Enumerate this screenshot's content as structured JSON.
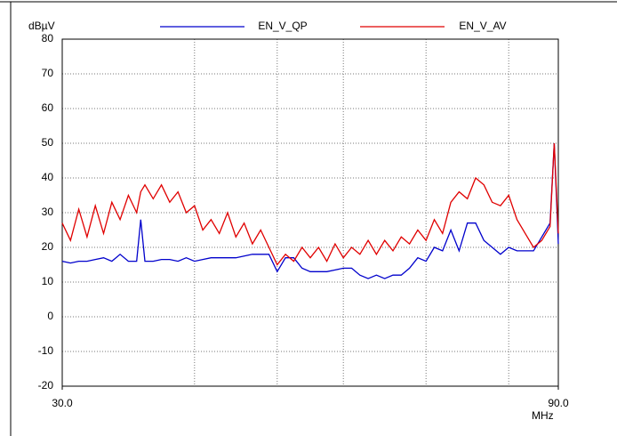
{
  "chart_data": {
    "type": "line",
    "y_label": "dBµV",
    "x_label": "MHz",
    "x": [
      30,
      31,
      32,
      33,
      34,
      35,
      36,
      37,
      38,
      39,
      39.5,
      40,
      41,
      42,
      43,
      44,
      45,
      46,
      47,
      48,
      49,
      50,
      51,
      52,
      53,
      54,
      55,
      56,
      57,
      58,
      59,
      60,
      61,
      62,
      63,
      64,
      65,
      66,
      67,
      68,
      69,
      70,
      71,
      72,
      73,
      74,
      75,
      76,
      77,
      78,
      79,
      80,
      81,
      82,
      83,
      84,
      85,
      86,
      87,
      88,
      89,
      89.5,
      90
    ],
    "series": [
      {
        "name": "EN_V_QP",
        "color": "#0000cc",
        "values": [
          16,
          15.5,
          16,
          16,
          16.5,
          17,
          16,
          18,
          16,
          16,
          28,
          16,
          16,
          16.5,
          16.5,
          16,
          17,
          16,
          16.5,
          17,
          17,
          17,
          17,
          17.5,
          18,
          18,
          18,
          13,
          17,
          17,
          14,
          13,
          13,
          13,
          13.5,
          14,
          14,
          12,
          11,
          12,
          11,
          12,
          12,
          14,
          17,
          16,
          20,
          19,
          25,
          19,
          27,
          27,
          22,
          20,
          18,
          20,
          19,
          19,
          19,
          23,
          27,
          50,
          21
        ]
      },
      {
        "name": "EN_V_AV",
        "color": "#e00000",
        "values": [
          27,
          22,
          31,
          23,
          32,
          24,
          33,
          28,
          35,
          30,
          36,
          38,
          34,
          38,
          33,
          36,
          30,
          32,
          25,
          28,
          24,
          30,
          23,
          27,
          21,
          25,
          20,
          15,
          18,
          16,
          20,
          17,
          20,
          16,
          21,
          17,
          20,
          18,
          22,
          18,
          22,
          19,
          23,
          21,
          25,
          22,
          28,
          24,
          33,
          36,
          34,
          40,
          38,
          33,
          32,
          35,
          28,
          24,
          20,
          22,
          26,
          50,
          24
        ]
      }
    ],
    "xlim": [
      30,
      90
    ],
    "xticks": [
      {
        "value": 30,
        "label": "30.0"
      },
      {
        "value": 90,
        "label": "90.0"
      }
    ],
    "xgrid": [
      46,
      56,
      64,
      74,
      84
    ],
    "ylim": [
      -20,
      80
    ],
    "yticks": [
      -20,
      -10,
      0,
      10,
      20,
      30,
      40,
      50,
      60,
      70,
      80
    ],
    "grid": true
  }
}
